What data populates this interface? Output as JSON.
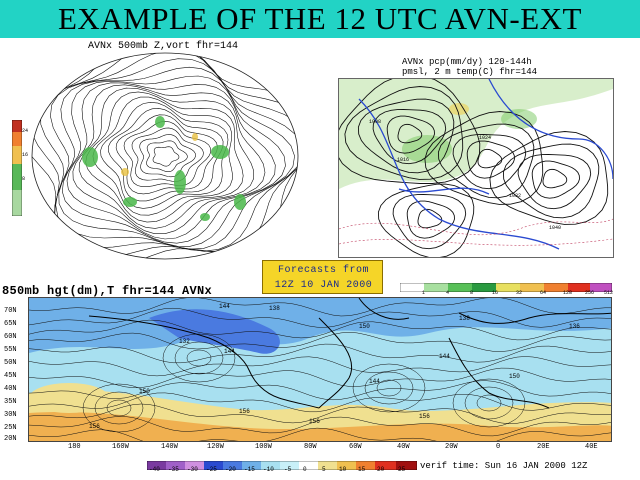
{
  "banner": {
    "title": "EXAMPLE OF THE 12 UTC AVN-EXT",
    "color": "#22d3c5"
  },
  "panel_500mb": {
    "title": "AVNx  500mb Z,vort  fhr=144",
    "colorbar_ticks": [
      "24",
      "16",
      "8"
    ]
  },
  "panel_pcp": {
    "title_line1": "AVNx pcp(mm/dy) 120-144h",
    "title_line2": "pmsl, 2 m temp(C)  fhr=144",
    "pressure_labels": [
      "1008",
      "1016",
      "1024",
      "1032",
      "1040"
    ],
    "colorbar_ticks": [
      "1",
      "4",
      "8",
      "16",
      "32",
      "64",
      "128",
      "256",
      "512"
    ]
  },
  "forecast_box": {
    "line1": "Forecasts from",
    "line2": "12Z 10 JAN 2000"
  },
  "panel_850": {
    "title": "850mb hgt(dm),T  fhr=144 AVNx",
    "lat_labels": [
      "70N",
      "65N",
      "60N",
      "55N",
      "50N",
      "45N",
      "40N",
      "35N",
      "30N",
      "25N",
      "20N"
    ],
    "lon_labels": [
      "180",
      "160W",
      "140W",
      "120W",
      "100W",
      "80W",
      "60W",
      "40W",
      "20W",
      "0",
      "20E",
      "40E"
    ],
    "height_labels": [
      "144",
      "138",
      "132",
      "150",
      "156",
      "144",
      "150",
      "138",
      "156",
      "144",
      "156",
      "150",
      "144",
      "136",
      "156"
    ],
    "temp_colorbar_ticks": [
      "-40",
      "-35",
      "-30",
      "-25",
      "-20",
      "-15",
      "-10",
      "-5",
      "0",
      "5",
      "10",
      "15",
      "20",
      "25"
    ],
    "verif_time": "verif time: Sun 16 JAN 2000 12Z"
  }
}
